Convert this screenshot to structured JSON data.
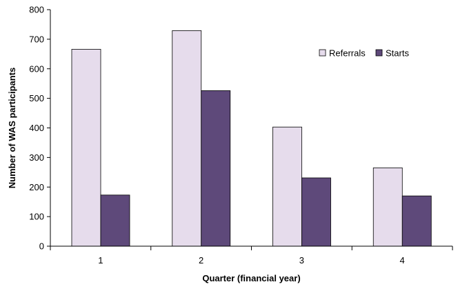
{
  "chart_data": {
    "type": "bar",
    "categories": [
      "1",
      "2",
      "3",
      "4"
    ],
    "series": [
      {
        "name": "Referrals",
        "values": [
          666,
          729,
          403,
          265
        ],
        "color": "#e6dcec"
      },
      {
        "name": "Starts",
        "values": [
          173,
          526,
          231,
          170
        ],
        "color": "#5e497a"
      }
    ],
    "xlabel": "Quarter (financial year)",
    "ylabel": "Number of WAS participants",
    "ylim": [
      0,
      800
    ],
    "yticks": [
      0,
      100,
      200,
      300,
      400,
      500,
      600,
      700,
      800
    ],
    "grid": false,
    "legend_position": "top-right"
  }
}
